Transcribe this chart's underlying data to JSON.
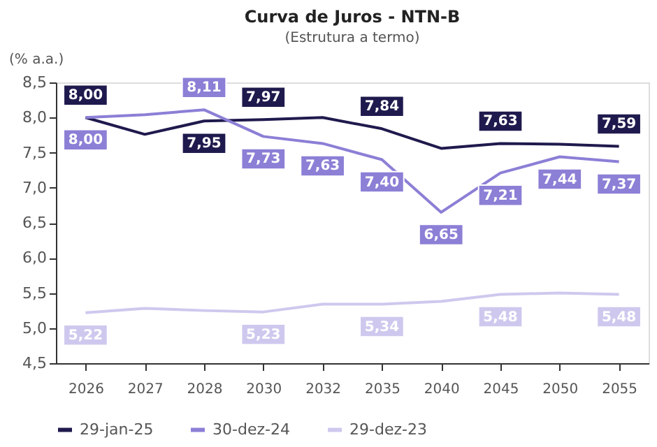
{
  "chart_data": {
    "type": "line",
    "title": "Curva de Juros - NTN-B",
    "subtitle": "(Estrutura a termo)",
    "ylabel": "(% a.a.)",
    "categories": [
      "2026",
      "2027",
      "2028",
      "2030",
      "2032",
      "2035",
      "2040",
      "2045",
      "2050",
      "2055"
    ],
    "series": [
      {
        "name": "29-jan-25",
        "color": "#1f1a4d",
        "values": [
          8.0,
          7.76,
          7.95,
          7.97,
          8.0,
          7.84,
          7.56,
          7.63,
          7.62,
          7.59
        ],
        "value_labels": [
          "8,00",
          null,
          "7,95",
          "7,97",
          null,
          "7,84",
          null,
          "7,63",
          null,
          "7,59"
        ]
      },
      {
        "name": "30-dez-24",
        "color": "#8b7fd6",
        "values": [
          8.0,
          8.04,
          8.11,
          7.73,
          7.63,
          7.4,
          6.65,
          7.21,
          7.44,
          7.37
        ],
        "value_labels": [
          "8,00",
          null,
          "8,11",
          "7,73",
          "7,63",
          "7,40",
          "6,65",
          "7,21",
          "7,44",
          "7,37"
        ]
      },
      {
        "name": "29-dez-23",
        "color": "#cfc8ee",
        "values": [
          5.22,
          5.28,
          5.25,
          5.23,
          5.34,
          5.34,
          5.38,
          5.48,
          5.5,
          5.48
        ],
        "value_labels": [
          "5,22",
          null,
          null,
          "5,23",
          null,
          "5,34",
          null,
          "5,48",
          null,
          "5,48"
        ]
      }
    ],
    "ylim": [
      4.5,
      8.5
    ],
    "yticks": [
      {
        "value": 4.5,
        "label": "4,5"
      },
      {
        "value": 5.0,
        "label": "5,0"
      },
      {
        "value": 5.5,
        "label": "5,5"
      },
      {
        "value": 6.0,
        "label": "6,0"
      },
      {
        "value": 6.5,
        "label": "6,5"
      },
      {
        "value": 7.0,
        "label": "7,0"
      },
      {
        "value": 7.5,
        "label": "7,5"
      },
      {
        "value": 8.0,
        "label": "8,0"
      },
      {
        "value": 8.5,
        "label": "8,5"
      }
    ],
    "grid": false,
    "legend": "bottom",
    "marker": "none",
    "line_style": "solid"
  }
}
